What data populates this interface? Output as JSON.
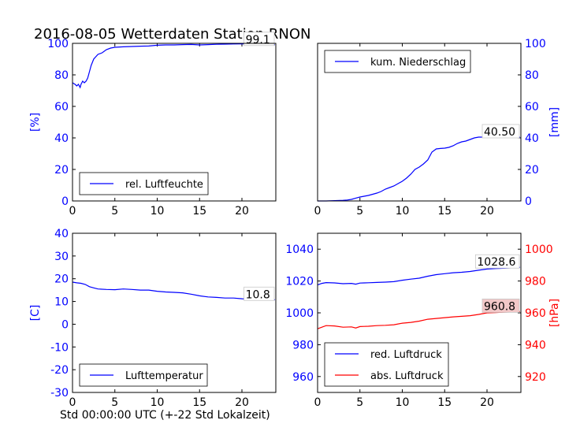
{
  "title": "2016-08-05 Wetterdaten Station RNON",
  "xlabel": "Std 00:00:00 UTC (+-22 Std Lokalzeit)",
  "colors": {
    "blue": "#0000ff",
    "red": "#ff0000",
    "annot_bg_red": "#f2c8c8"
  },
  "chart_data": [
    {
      "id": "humidity",
      "type": "line",
      "ylabel": "[%]",
      "ylabel_side": "left",
      "ylabel_color": "#0000ff",
      "ylim": [
        0,
        100
      ],
      "yticks": [
        0,
        20,
        40,
        60,
        80,
        100
      ],
      "xlim": [
        0,
        24
      ],
      "xticks": [
        0,
        5,
        10,
        15,
        20
      ],
      "legend_position": "lower-left",
      "annotation": "99.1",
      "series": [
        {
          "name": "rel. Luftfeuchte",
          "color": "#0000ff",
          "x": [
            0,
            0.3,
            0.5,
            0.7,
            0.9,
            1.0,
            1.2,
            1.4,
            1.6,
            1.8,
            2.0,
            2.2,
            2.5,
            3.0,
            3.5,
            4.0,
            4.5,
            5.0,
            6.0,
            7.0,
            8.0,
            9.0,
            10.0,
            11.0,
            12.0,
            13.0,
            14.0,
            15.0,
            16.0,
            17.0,
            18.0,
            19.0,
            20.0,
            21.0,
            22.0,
            23.0,
            23.9
          ],
          "y": [
            75,
            74,
            73,
            74,
            72,
            74,
            76,
            75,
            76,
            78,
            82,
            86,
            90,
            93,
            94,
            96,
            97,
            97.5,
            97.8,
            98,
            98.2,
            98.3,
            98.8,
            99,
            99,
            99.2,
            99.3,
            99,
            99.2,
            99.4,
            99.5,
            99.6,
            99.7,
            99.8,
            99.7,
            99.5,
            99.1
          ]
        }
      ]
    },
    {
      "id": "precip",
      "type": "line",
      "ylabel": "[mm]",
      "ylabel_side": "right",
      "ylabel_color": "#0000ff",
      "ylim": [
        0,
        100
      ],
      "yticks": [
        0,
        20,
        40,
        60,
        80,
        100
      ],
      "xlim": [
        0,
        24
      ],
      "xticks": [
        0,
        5,
        10,
        15,
        20
      ],
      "legend_position": "upper-left",
      "annotation": "40.50",
      "series": [
        {
          "name": "kum. Niederschlag",
          "color": "#0000ff",
          "x": [
            0,
            1,
            2,
            3,
            3.5,
            4,
            4.5,
            5,
            6,
            7,
            7.5,
            8,
            8.5,
            9,
            9.5,
            10,
            10.5,
            11,
            11.5,
            12,
            12.5,
            13,
            13.5,
            14,
            14.5,
            15,
            15.5,
            16,
            16.5,
            17,
            17.5,
            18,
            18.5,
            19,
            19.5,
            20,
            21,
            22,
            23,
            23.9
          ],
          "y": [
            0,
            0,
            0.2,
            0.4,
            0.6,
            1,
            1.8,
            2.5,
            3.5,
            5,
            6,
            7.5,
            8.5,
            9.5,
            11,
            12.5,
            14.5,
            17,
            20,
            21.5,
            23.5,
            26,
            31,
            33,
            33.3,
            33.5,
            34,
            35,
            36.5,
            37.5,
            38,
            39,
            40,
            40.5,
            40.5,
            40.5,
            40.5,
            40.5,
            40.5,
            40.5
          ]
        }
      ]
    },
    {
      "id": "temperature",
      "type": "line",
      "ylabel": "[C]",
      "ylabel_side": "left",
      "ylabel_color": "#0000ff",
      "ylim": [
        -30,
        40
      ],
      "yticks": [
        -30,
        -20,
        -10,
        0,
        10,
        20,
        30,
        40
      ],
      "xlim": [
        0,
        24
      ],
      "xticks": [
        0,
        5,
        10,
        15,
        20
      ],
      "legend_position": "lower-left",
      "annotation": "10.8",
      "series": [
        {
          "name": "Lufttemperatur",
          "color": "#0000ff",
          "x": [
            0,
            0.5,
            1,
            1.5,
            2,
            2.5,
            3,
            4,
            5,
            6,
            7,
            8,
            9,
            10,
            11,
            12,
            13,
            14,
            15,
            16,
            17,
            18,
            19,
            20,
            21,
            22,
            23,
            23.9
          ],
          "y": [
            18.5,
            18.2,
            18,
            17.5,
            16.5,
            16,
            15.5,
            15.3,
            15.2,
            15.5,
            15.3,
            15,
            15,
            14.5,
            14.2,
            14,
            13.8,
            13.2,
            12.5,
            12,
            11.8,
            11.5,
            11.5,
            11.2,
            11,
            10.8,
            10.8,
            10.8
          ]
        }
      ]
    },
    {
      "id": "pressure",
      "type": "line",
      "ylabel": "[hPa]",
      "ylabel_side": "right",
      "ylabel_color": "#ff0000",
      "ylim_left": [
        950,
        1050
      ],
      "yticks_left": [
        960,
        980,
        1000,
        1020,
        1040
      ],
      "ylim_right": [
        910,
        1010
      ],
      "yticks_right": [
        920,
        940,
        960,
        980,
        1000
      ],
      "xlim": [
        0,
        24
      ],
      "xticks": [
        0,
        5,
        10,
        15,
        20
      ],
      "legend_position": "lower-left",
      "annotations": [
        {
          "text": "1028.6",
          "color": "#0000ff",
          "axis": "left"
        },
        {
          "text": "960.8",
          "color": "#ff0000",
          "axis": "right"
        }
      ],
      "series": [
        {
          "name": "red. Luftdruck",
          "color": "#0000ff",
          "axis": "left",
          "x": [
            0,
            0.5,
            1,
            2,
            3,
            4,
            4.5,
            5,
            5.5,
            6,
            7,
            8,
            9,
            10,
            11,
            12,
            13,
            14,
            15,
            16,
            17,
            18,
            19,
            20,
            21,
            22,
            23,
            23.9
          ],
          "y": [
            1017.5,
            1018.5,
            1019,
            1018.8,
            1018.3,
            1018.5,
            1018,
            1018.7,
            1018.8,
            1018.9,
            1019.1,
            1019.3,
            1019.6,
            1020.5,
            1021.2,
            1021.8,
            1023,
            1024,
            1024.6,
            1025.2,
            1025.5,
            1026,
            1026.8,
            1027.5,
            1027.8,
            1028,
            1028.3,
            1028.6
          ]
        },
        {
          "name": "abs. Luftdruck",
          "color": "#ff0000",
          "axis": "right",
          "x": [
            0,
            0.5,
            1,
            2,
            3,
            4,
            4.5,
            5,
            5.5,
            6,
            7,
            8,
            9,
            10,
            11,
            12,
            13,
            14,
            15,
            16,
            17,
            18,
            19,
            20,
            21,
            22,
            23,
            23.9
          ],
          "y": [
            950,
            951,
            952,
            951.8,
            951,
            951.2,
            950.5,
            951.4,
            951.5,
            951.6,
            952,
            952.2,
            952.5,
            953.5,
            954,
            954.8,
            956,
            956.5,
            957,
            957.5,
            957.8,
            958.2,
            959,
            960,
            960.2,
            960.4,
            960.6,
            960.8
          ]
        }
      ]
    }
  ]
}
